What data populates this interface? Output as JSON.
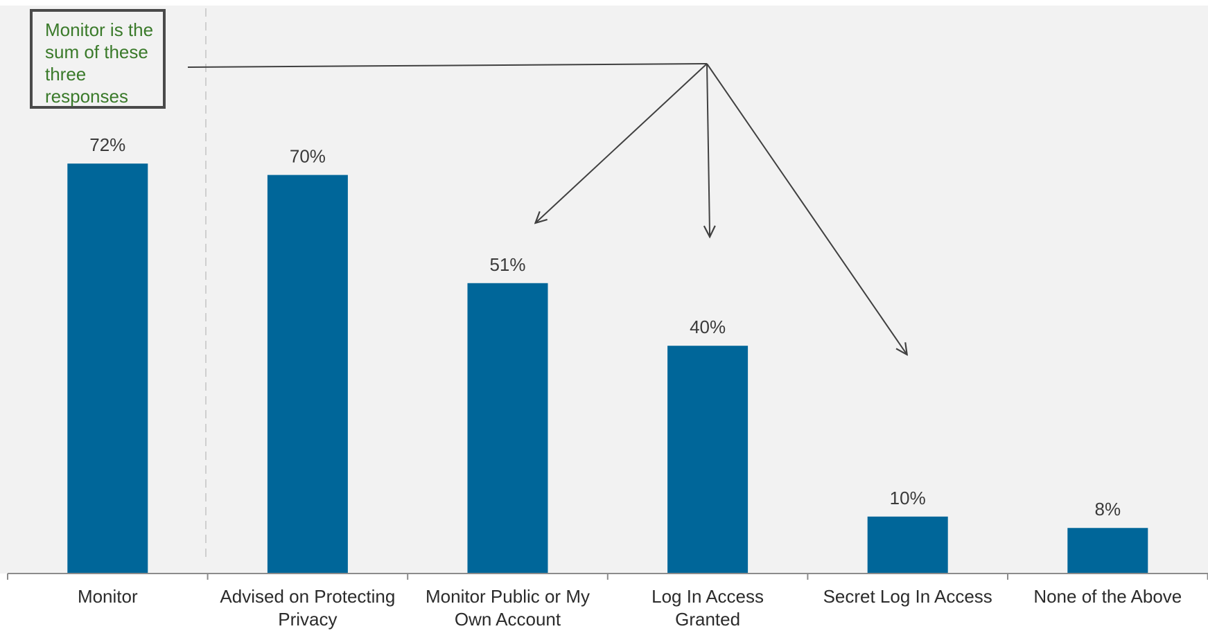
{
  "chart_data": {
    "type": "bar",
    "title": "",
    "xlabel": "",
    "ylabel": "",
    "ylim": [
      0,
      100
    ],
    "grid": false,
    "legend": "none",
    "categories": [
      "Monitor",
      "Advised on Protecting Privacy",
      "Monitor Public or My Own Account",
      "Log In Access Granted",
      "Secret Log In Access",
      "None of the Above"
    ],
    "category_lines": [
      [
        "Monitor"
      ],
      [
        "Advised on Protecting",
        "Privacy"
      ],
      [
        "Monitor Public or My",
        "Own Account"
      ],
      [
        "Log In Access",
        "Granted"
      ],
      [
        "Secret Log In Access"
      ],
      [
        "None of the Above"
      ]
    ],
    "values": [
      72,
      70,
      51,
      40,
      10,
      8
    ],
    "value_labels": [
      "72%",
      "70%",
      "51%",
      "40%",
      "10%",
      "8%"
    ],
    "annotation": {
      "text": "Monitor is the sum of these three responses",
      "lines": [
        "Monitor is the",
        "sum of these",
        "three",
        "responses"
      ],
      "points_to": [
        "Monitor Public or My Own Account",
        "Log In Access Granted",
        "Secret Log In Access"
      ]
    }
  },
  "colors": {
    "bar": "#006699",
    "plot_background": "#f2f2f2",
    "annotation_text": "#3a7a2a",
    "arrow": "#404040"
  }
}
